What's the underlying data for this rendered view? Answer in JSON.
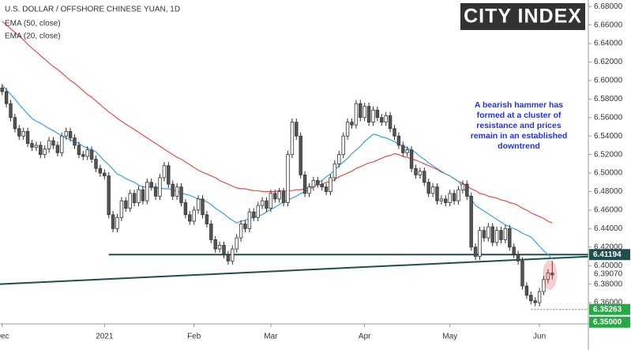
{
  "chart_data": {
    "type": "candlestick",
    "title": "U.S. DOLLAR / OFFSHORE CHINESE YUAN, 1D",
    "logo": "CITY INDEX",
    "annotation": [
      "A bearish hammer has",
      "formed at a cluster of",
      "resistance and prices",
      "remain in an established",
      "downtrend"
    ],
    "categories": [
      "Dec",
      null,
      null,
      null,
      null,
      null,
      null,
      null,
      null,
      null,
      null,
      null,
      null,
      null,
      null,
      null,
      null,
      null,
      null,
      null,
      null,
      null,
      null,
      null,
      "2021",
      null,
      null,
      null,
      null,
      null,
      null,
      null,
      null,
      null,
      null,
      null,
      null,
      null,
      null,
      null,
      null,
      null,
      null,
      null,
      null,
      "Feb",
      null,
      null,
      null,
      null,
      null,
      null,
      null,
      null,
      null,
      null,
      null,
      null,
      null,
      null,
      null,
      null,
      null,
      "Mar",
      null,
      null,
      null,
      null,
      null,
      null,
      null,
      null,
      null,
      null,
      null,
      null,
      null,
      null,
      null,
      null,
      null,
      null,
      null,
      null,
      null,
      "Apr",
      null,
      null,
      null,
      null,
      null,
      null,
      null,
      null,
      null,
      null,
      null,
      null,
      null,
      null,
      null,
      null,
      null,
      null,
      null,
      "May",
      null,
      null,
      null,
      null,
      null,
      null,
      null,
      null,
      null,
      null,
      null,
      null,
      null,
      null,
      null,
      null,
      null,
      null,
      null,
      null,
      "Jun",
      null,
      null,
      null
    ],
    "candles": {
      "up_color": "#ffffff",
      "down_color": "#555555",
      "edge_color": "#333333",
      "open": [
        6.592,
        6.588,
        6.575,
        6.56,
        6.548,
        6.54,
        6.545,
        6.532,
        6.528,
        6.53,
        6.52,
        6.526,
        6.535,
        6.53,
        6.522,
        6.54,
        6.545,
        6.538,
        6.53,
        6.52,
        6.518,
        6.525,
        6.515,
        6.505,
        6.5,
        6.497,
        6.455,
        6.44,
        6.452,
        6.47,
        6.462,
        6.478,
        6.468,
        6.482,
        6.47,
        6.49,
        6.485,
        6.475,
        6.495,
        6.508,
        6.488,
        6.475,
        6.485,
        6.468,
        6.455,
        6.448,
        6.46,
        6.472,
        6.455,
        6.445,
        6.428,
        6.418,
        6.422,
        6.412,
        6.405,
        6.418,
        6.43,
        6.445,
        6.44,
        6.458,
        6.452,
        6.465,
        6.47,
        6.462,
        6.478,
        6.472,
        6.48,
        6.468,
        6.52,
        6.555,
        6.54,
        6.498,
        6.478,
        6.485,
        6.492,
        6.488,
        6.485,
        6.48,
        6.495,
        6.51,
        6.52,
        6.54,
        6.555,
        6.552,
        6.575,
        6.56,
        6.572,
        6.555,
        6.568,
        6.56,
        6.555,
        6.562,
        6.548,
        6.54,
        6.53,
        6.522,
        6.525,
        6.505,
        6.498,
        6.502,
        6.49,
        6.478,
        6.485,
        6.47,
        6.472,
        6.468,
        6.478,
        6.47,
        6.482,
        6.488,
        6.475,
        6.42,
        6.41,
        6.438,
        6.43,
        6.442,
        6.425,
        6.438,
        6.428,
        6.44,
        6.42,
        6.412,
        6.405,
        6.378,
        6.368,
        6.362,
        6.36,
        6.372,
        6.385,
        6.392
      ],
      "high": [
        6.596,
        6.592,
        6.579,
        6.564,
        6.552,
        6.549,
        6.549,
        6.536,
        6.534,
        6.534,
        6.53,
        6.539,
        6.539,
        6.534,
        6.544,
        6.549,
        6.549,
        6.542,
        6.534,
        6.524,
        6.529,
        6.529,
        6.519,
        6.509,
        6.504,
        6.501,
        6.459,
        6.456,
        6.474,
        6.474,
        6.482,
        6.482,
        6.486,
        6.486,
        6.494,
        6.494,
        6.489,
        6.499,
        6.512,
        6.512,
        6.492,
        6.489,
        6.489,
        6.472,
        6.459,
        6.464,
        6.476,
        6.476,
        6.459,
        6.449,
        6.432,
        6.426,
        6.426,
        6.416,
        6.422,
        6.434,
        6.449,
        6.449,
        6.462,
        6.462,
        6.469,
        6.474,
        6.474,
        6.482,
        6.482,
        6.484,
        6.484,
        6.524,
        6.559,
        6.559,
        6.544,
        6.502,
        6.489,
        6.496,
        6.496,
        6.492,
        6.489,
        6.499,
        6.514,
        6.524,
        6.544,
        6.559,
        6.559,
        6.579,
        6.579,
        6.576,
        6.576,
        6.572,
        6.572,
        6.564,
        6.566,
        6.566,
        6.552,
        6.544,
        6.534,
        6.529,
        6.529,
        6.509,
        6.506,
        6.506,
        6.494,
        6.489,
        6.489,
        6.476,
        6.476,
        6.482,
        6.482,
        6.486,
        6.492,
        6.492,
        6.479,
        6.424,
        6.442,
        6.442,
        6.446,
        6.446,
        6.442,
        6.442,
        6.444,
        6.444,
        6.424,
        6.416,
        6.409,
        6.382,
        6.372,
        6.366,
        6.376,
        6.389,
        6.396,
        6.405
      ],
      "low": [
        6.584,
        6.571,
        6.556,
        6.544,
        6.536,
        6.536,
        6.528,
        6.524,
        6.524,
        6.516,
        6.516,
        6.522,
        6.526,
        6.518,
        6.518,
        6.536,
        6.534,
        6.526,
        6.516,
        6.514,
        6.514,
        6.511,
        6.501,
        6.496,
        6.493,
        6.451,
        6.436,
        6.436,
        6.448,
        6.458,
        6.458,
        6.464,
        6.464,
        6.466,
        6.466,
        6.481,
        6.471,
        6.471,
        6.491,
        6.484,
        6.471,
        6.471,
        6.464,
        6.451,
        6.444,
        6.444,
        6.456,
        6.451,
        6.441,
        6.424,
        6.414,
        6.414,
        6.408,
        6.401,
        6.401,
        6.414,
        6.426,
        6.436,
        6.436,
        6.448,
        6.448,
        6.461,
        6.458,
        6.458,
        6.468,
        6.468,
        6.464,
        6.464,
        6.516,
        6.536,
        6.494,
        6.474,
        6.474,
        6.481,
        6.484,
        6.481,
        6.476,
        6.476,
        6.491,
        6.506,
        6.516,
        6.536,
        6.548,
        6.548,
        6.556,
        6.556,
        6.551,
        6.551,
        6.556,
        6.551,
        6.551,
        6.544,
        6.536,
        6.526,
        6.518,
        6.518,
        6.501,
        6.494,
        6.494,
        6.486,
        6.474,
        6.474,
        6.466,
        6.466,
        6.464,
        6.464,
        6.466,
        6.466,
        6.478,
        6.471,
        6.416,
        6.406,
        6.406,
        6.426,
        6.426,
        6.421,
        6.421,
        6.424,
        6.424,
        6.416,
        6.408,
        6.401,
        6.374,
        6.364,
        6.358,
        6.356,
        6.356,
        6.368,
        6.381,
        6.385
      ],
      "close": [
        6.588,
        6.575,
        6.56,
        6.548,
        6.54,
        6.545,
        6.532,
        6.528,
        6.53,
        6.52,
        6.526,
        6.535,
        6.53,
        6.522,
        6.54,
        6.545,
        6.538,
        6.53,
        6.52,
        6.518,
        6.525,
        6.515,
        6.505,
        6.5,
        6.497,
        6.455,
        6.44,
        6.452,
        6.47,
        6.462,
        6.478,
        6.468,
        6.482,
        6.47,
        6.49,
        6.485,
        6.475,
        6.495,
        6.508,
        6.488,
        6.475,
        6.485,
        6.468,
        6.455,
        6.448,
        6.46,
        6.472,
        6.455,
        6.445,
        6.428,
        6.418,
        6.422,
        6.412,
        6.405,
        6.418,
        6.43,
        6.445,
        6.44,
        6.458,
        6.452,
        6.465,
        6.47,
        6.462,
        6.478,
        6.472,
        6.48,
        6.468,
        6.52,
        6.555,
        6.54,
        6.498,
        6.478,
        6.485,
        6.492,
        6.488,
        6.485,
        6.48,
        6.495,
        6.51,
        6.52,
        6.54,
        6.555,
        6.552,
        6.575,
        6.56,
        6.572,
        6.555,
        6.568,
        6.56,
        6.555,
        6.562,
        6.548,
        6.54,
        6.53,
        6.522,
        6.525,
        6.505,
        6.498,
        6.502,
        6.49,
        6.478,
        6.485,
        6.47,
        6.472,
        6.468,
        6.478,
        6.47,
        6.482,
        6.488,
        6.475,
        6.42,
        6.41,
        6.438,
        6.43,
        6.442,
        6.425,
        6.438,
        6.428,
        6.44,
        6.42,
        6.412,
        6.405,
        6.378,
        6.368,
        6.362,
        6.36,
        6.372,
        6.385,
        6.392,
        6.39
      ]
    },
    "series": [
      {
        "name": "EMA (50, close)",
        "color": "#e0504a",
        "values": [
          6.664,
          6.66,
          6.656,
          6.652,
          6.648,
          6.644,
          6.639,
          6.635,
          6.631,
          6.627,
          6.623,
          6.619,
          6.615,
          6.612,
          6.608,
          6.604,
          6.6,
          6.597,
          6.593,
          6.589,
          6.585,
          6.582,
          6.578,
          6.574,
          6.57,
          6.566,
          6.563,
          6.559,
          6.556,
          6.553,
          6.55,
          6.547,
          6.544,
          6.541,
          6.538,
          6.535,
          6.532,
          6.529,
          6.526,
          6.523,
          6.52,
          6.517,
          6.515,
          6.512,
          6.509,
          6.506,
          6.503,
          6.501,
          6.499,
          6.497,
          6.495,
          6.492,
          6.49,
          6.488,
          6.486,
          6.484,
          6.483,
          6.483,
          6.482,
          6.481,
          6.481,
          6.48,
          6.48,
          6.48,
          6.48,
          6.481,
          6.481,
          6.481,
          6.481,
          6.482,
          6.482,
          6.483,
          6.485,
          6.486,
          6.487,
          6.488,
          6.49,
          6.491,
          6.493,
          6.496,
          6.498,
          6.5,
          6.502,
          6.505,
          6.507,
          6.509,
          6.511,
          6.512,
          6.514,
          6.516,
          6.518,
          6.519,
          6.521,
          6.52,
          6.518,
          6.517,
          6.515,
          6.514,
          6.512,
          6.51,
          6.508,
          6.506,
          6.504,
          6.501,
          6.499,
          6.497,
          6.494,
          6.491,
          6.489,
          6.486,
          6.483,
          6.481,
          6.478,
          6.477,
          6.475,
          6.474,
          6.473,
          6.471,
          6.47,
          6.468,
          6.467,
          6.465,
          6.462,
          6.46,
          6.457,
          6.455,
          6.453,
          6.451,
          6.448,
          6.446
        ]
      },
      {
        "name": "EMA (20, close)",
        "color": "#3d9ee0",
        "values": [
          6.595,
          6.59,
          6.585,
          6.58,
          6.574,
          6.569,
          6.564,
          6.559,
          6.556,
          6.554,
          6.551,
          6.548,
          6.546,
          6.543,
          6.54,
          6.538,
          6.536,
          6.534,
          6.532,
          6.529,
          6.527,
          6.525,
          6.523,
          6.518,
          6.513,
          6.509,
          6.504,
          6.499,
          6.497,
          6.494,
          6.492,
          6.49,
          6.487,
          6.485,
          6.485,
          6.484,
          6.484,
          6.484,
          6.483,
          6.483,
          6.482,
          6.48,
          6.479,
          6.477,
          6.476,
          6.474,
          6.472,
          6.471,
          6.469,
          6.466,
          6.462,
          6.459,
          6.456,
          6.452,
          6.449,
          6.446,
          6.448,
          6.449,
          6.451,
          6.452,
          6.454,
          6.455,
          6.458,
          6.461,
          6.463,
          6.466,
          6.469,
          6.471,
          6.473,
          6.475,
          6.478,
          6.48,
          6.482,
          6.485,
          6.489,
          6.492,
          6.496,
          6.499,
          6.503,
          6.508,
          6.512,
          6.516,
          6.521,
          6.525,
          6.529,
          6.534,
          6.538,
          6.542,
          6.541,
          6.539,
          6.538,
          6.536,
          6.534,
          6.531,
          6.529,
          6.527,
          6.525,
          6.522,
          6.518,
          6.515,
          6.511,
          6.508,
          6.505,
          6.502,
          6.499,
          6.497,
          6.494,
          6.491,
          6.485,
          6.478,
          6.472,
          6.465,
          6.462,
          6.459,
          6.456,
          6.453,
          6.45,
          6.447,
          6.444,
          6.442,
          6.44,
          6.438,
          6.435,
          6.433,
          6.431,
          6.426,
          6.421,
          6.416,
          6.412,
          6.407
        ]
      }
    ],
    "support": {
      "value": 6.41194,
      "color": "#1f4e4e"
    },
    "trendline": {
      "values": [
        6.38,
        6.4098
      ],
      "color": "#1f4e4e"
    },
    "low_level": {
      "value": 6.35263,
      "color": "#27a844"
    },
    "level_box": {
      "value": 6.35,
      "label": "6.35000",
      "color": "#27a844"
    },
    "last_price": {
      "value": 6.3907,
      "label": "6.39070"
    },
    "ylim": [
      6.337,
      6.687
    ],
    "yticks": [
      {
        "value": 6.68,
        "label": "6.68000"
      },
      {
        "value": 6.66,
        "label": "6.66000"
      },
      {
        "value": 6.64,
        "label": "6.64000"
      },
      {
        "value": 6.62,
        "label": "6.62000"
      },
      {
        "value": 6.6,
        "label": "6.60000"
      },
      {
        "value": 6.58,
        "label": "6.58000"
      },
      {
        "value": 6.56,
        "label": "6.56000"
      },
      {
        "value": 6.54,
        "label": "6.54000"
      },
      {
        "value": 6.52,
        "label": "6.52000"
      },
      {
        "value": 6.5,
        "label": "6.50000"
      },
      {
        "value": 6.48,
        "label": "6.48000"
      },
      {
        "value": 6.46,
        "label": "6.46000"
      },
      {
        "value": 6.44,
        "label": "6.44000"
      },
      {
        "value": 6.42,
        "label": "6.42000"
      },
      {
        "value": 6.4,
        "label": "6.40000"
      },
      {
        "value": 6.38,
        "label": "6.38000"
      },
      {
        "value": 6.36,
        "label": "6.36000"
      }
    ],
    "grid": false
  }
}
